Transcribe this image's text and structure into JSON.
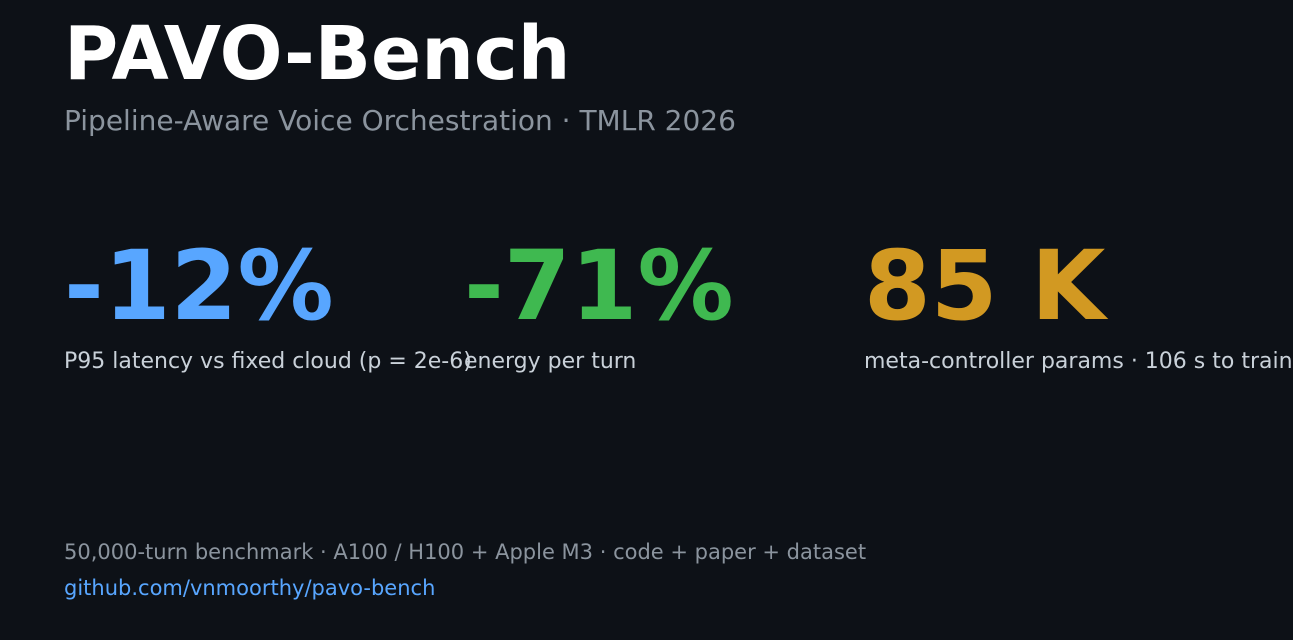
{
  "header": {
    "title": "PAVO-Bench",
    "subtitle": "Pipeline-Aware Voice Orchestration · TMLR 2026"
  },
  "stats": [
    {
      "value": "-12%",
      "label": "P95 latency vs fixed cloud (p = 2e-6)",
      "color": "#58a6ff"
    },
    {
      "value": "-71%",
      "label": "energy per turn",
      "color": "#3fb950"
    },
    {
      "value": "85 K",
      "label": "meta-controller params  ·  106 s to train",
      "color": "#d29922"
    }
  ],
  "footer": {
    "summary": "50,000-turn benchmark  ·  A100 / H100 + Apple M3  ·  code + paper + dataset",
    "link": "github.com/vnmoorthy/pavo-bench",
    "link_color": "#58a6ff"
  }
}
